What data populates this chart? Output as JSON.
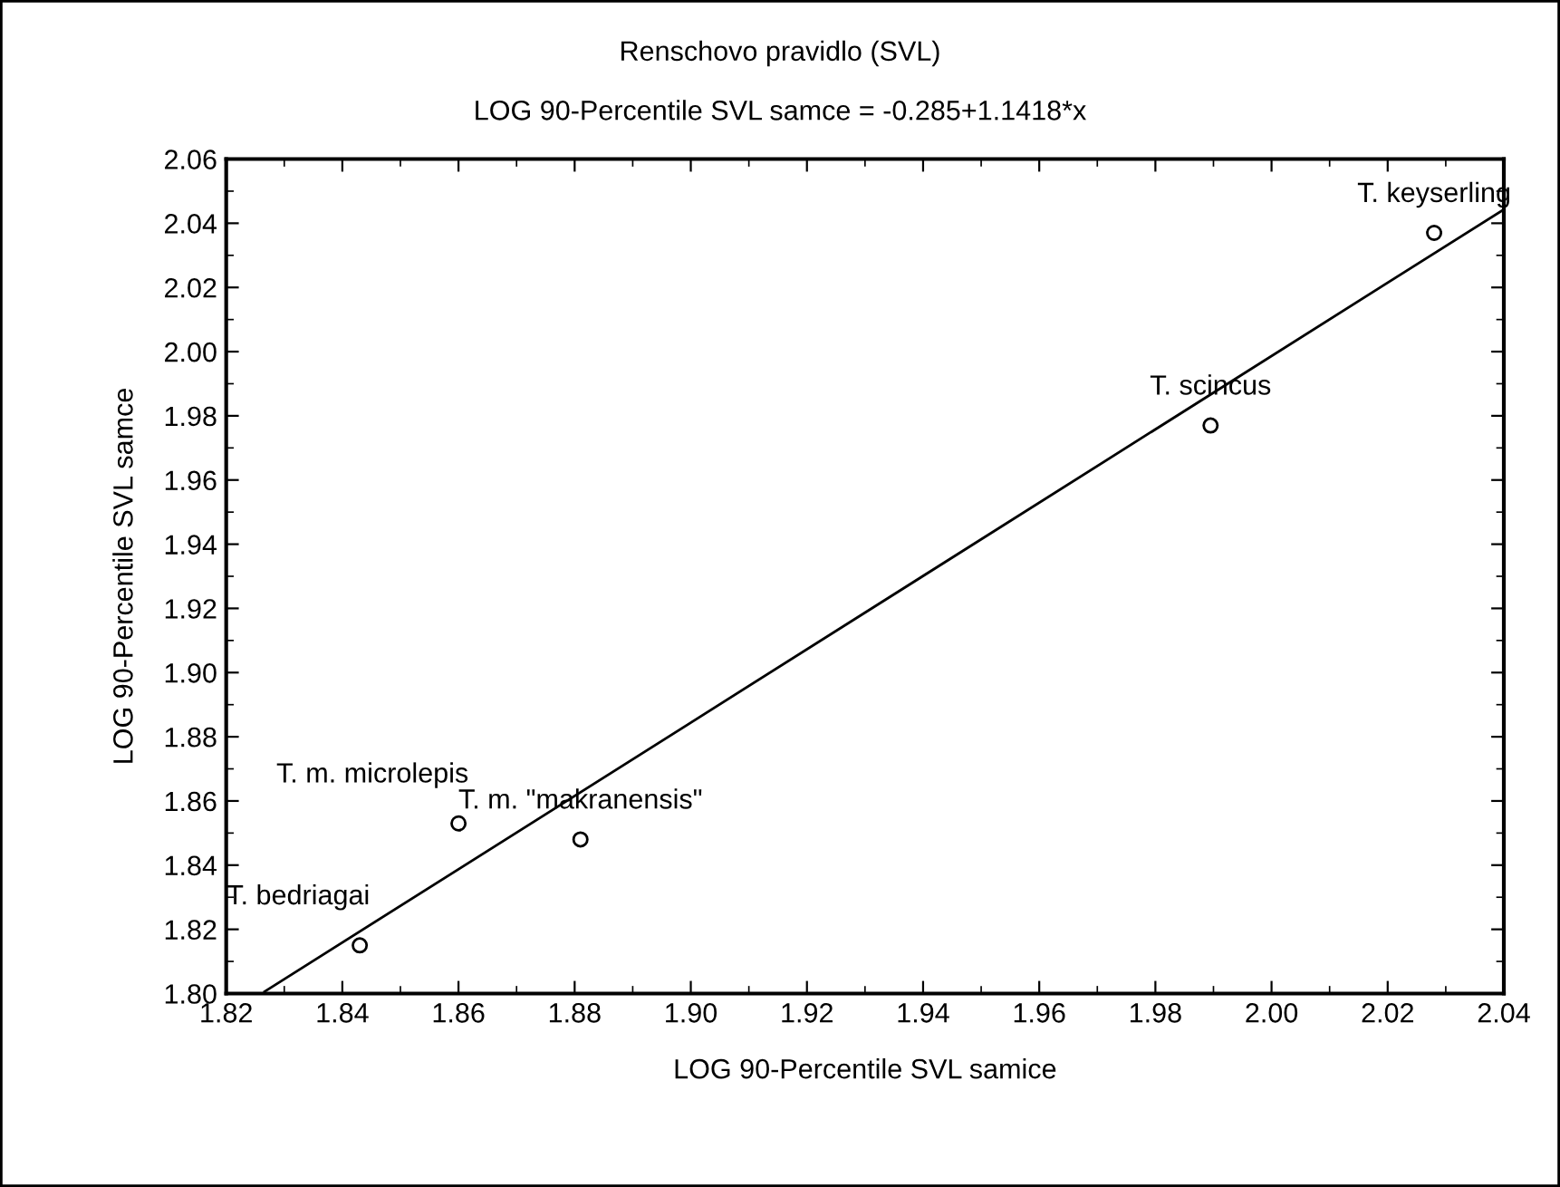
{
  "chart_data": {
    "type": "scatter",
    "title": "Renschovo pravidlo (SVL)",
    "subtitle": "LOG 90-Percentile SVL samce = -0.285+1.1418*x",
    "xlabel": "LOG 90-Percentile SVL samice",
    "ylabel": "LOG 90-Percentile SVL samce",
    "series": [
      {
        "color": "#000000",
        "marker": "circle",
        "x": [
          1.843,
          1.86,
          1.881,
          1.9895,
          2.028
        ],
        "values": [
          1.815,
          1.853,
          1.848,
          1.977,
          2.037
        ]
      },
      {
        "type": "line",
        "color": "#000000",
        "marker": "none",
        "line_style": "solid",
        "x": [
          1.8266,
          2.04
        ],
        "values": [
          1.8006,
          2.0443
        ]
      }
    ],
    "annotations": [
      {
        "text": "T. bedriagai",
        "x": 1.843,
        "y": 1.815
      },
      {
        "text": "T. m. microlepis",
        "x": 1.86,
        "y": 1.853
      },
      {
        "text": "T. m. \"makranensis\"",
        "x": 1.881,
        "y": 1.848
      },
      {
        "text": "T. scincus",
        "x": 1.9895,
        "y": 1.977
      },
      {
        "text": "T. keyserling",
        "x": 2.028,
        "y": 2.037
      }
    ],
    "xlim": [
      1.82,
      2.04
    ],
    "xticks": [
      1.82,
      1.84,
      1.86,
      1.88,
      {
        "value": 1.9,
        "label": "1.90"
      },
      1.92,
      1.94,
      1.96,
      1.98,
      {
        "value": 2.0,
        "label": "2.00"
      },
      2.02,
      2.04
    ],
    "ylim": [
      1.8,
      2.06
    ],
    "yticks": [
      {
        "value": 1.8,
        "label": "1.80"
      },
      1.82,
      1.84,
      1.86,
      1.88,
      {
        "value": 1.9,
        "label": "1.90"
      },
      1.92,
      1.94,
      1.96,
      1.98,
      {
        "value": 2.0,
        "label": "2.00"
      },
      2.02,
      2.04,
      2.06
    ],
    "grid": false
  }
}
